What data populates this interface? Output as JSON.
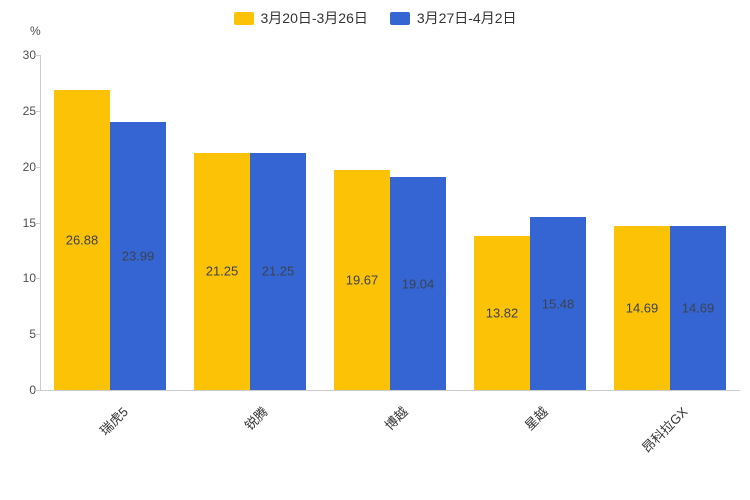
{
  "chart_data": {
    "type": "bar",
    "title": "",
    "unit_label": "%",
    "categories": [
      "瑞虎5",
      "锐腾",
      "博越",
      "星越",
      "昂科拉GX"
    ],
    "series": [
      {
        "name": "3月20日-3月26日",
        "color": "#fcc306",
        "values": [
          26.88,
          21.25,
          19.67,
          13.82,
          14.69
        ]
      },
      {
        "name": "3月27日-4月2日",
        "color": "#3565d2",
        "values": [
          23.99,
          21.25,
          19.04,
          15.48,
          14.69
        ]
      }
    ],
    "ylim": [
      0,
      30
    ],
    "yticks": [
      0,
      5,
      10,
      15,
      20,
      25,
      30
    ],
    "grid": false,
    "legend_position": "top",
    "value_labels": true,
    "value_label_decimals": 2
  }
}
